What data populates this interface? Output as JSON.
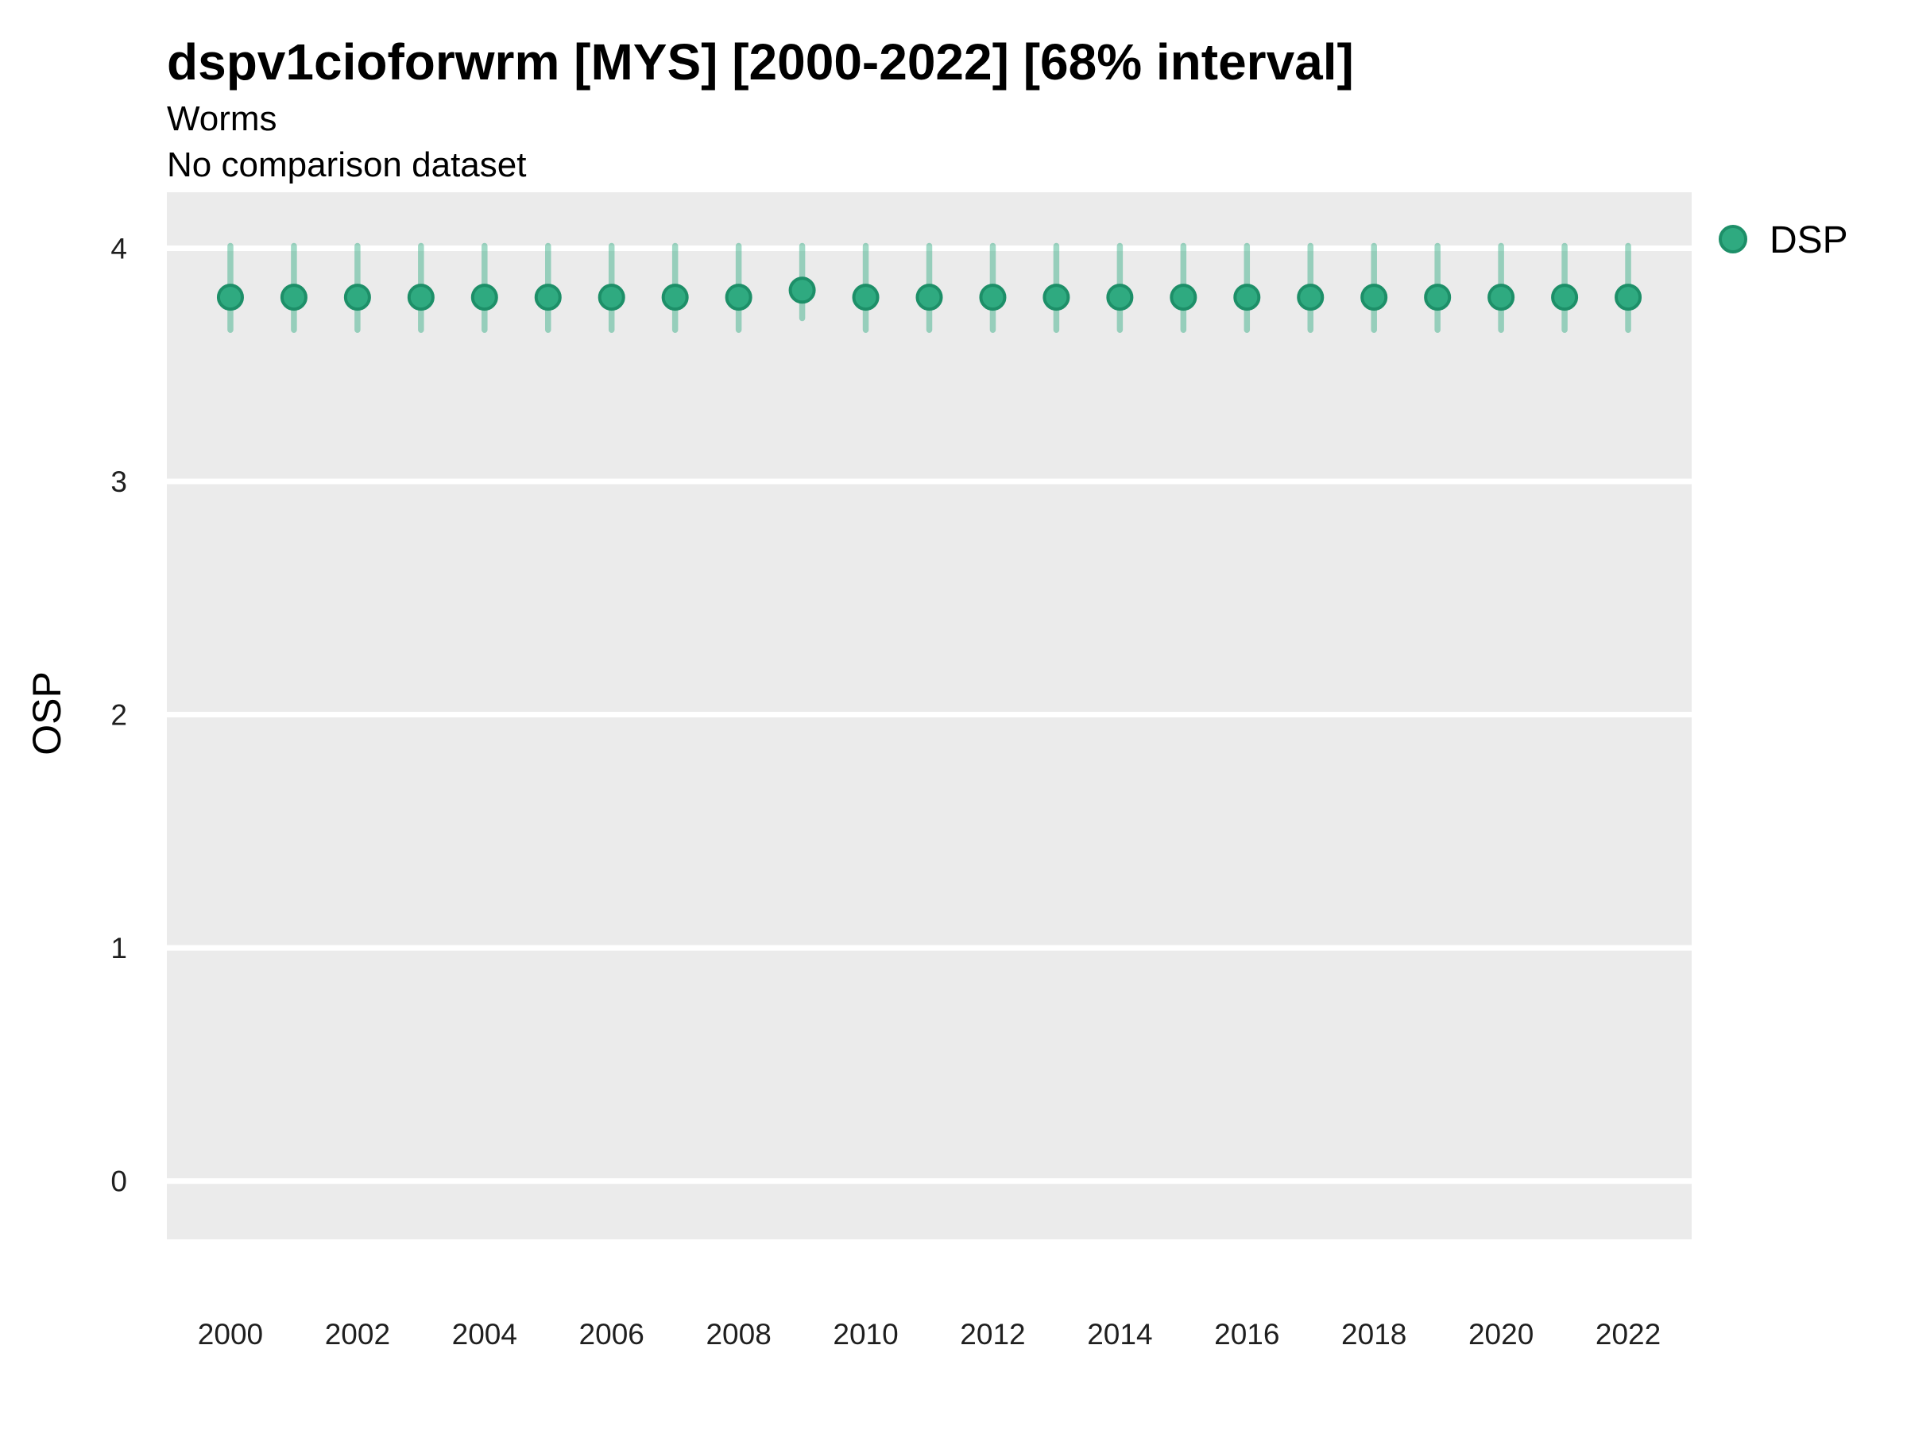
{
  "header": {
    "title": "dspv1cioforwrm [MYS] [2000-2022] [68% interval]",
    "subtitle": "Worms",
    "note": "No comparison dataset"
  },
  "legend": {
    "label": "DSP"
  },
  "axes": {
    "y_title": "OSP",
    "y_ticks": [
      "0",
      "1",
      "2",
      "3",
      "4"
    ],
    "x_ticks": [
      "2000",
      "2002",
      "2004",
      "2006",
      "2008",
      "2010",
      "2012",
      "2014",
      "2016",
      "2018",
      "2020",
      "2022"
    ]
  },
  "colors": {
    "point_fill": "#2faa80",
    "point_stroke": "#1d8f68",
    "errorbar": "#2faa80",
    "panel_bg": "#ebebeb",
    "gridline": "#ffffff",
    "text": "#000000",
    "tick_text": "#1f1f1f"
  },
  "chart_data": {
    "type": "scatter",
    "title": "dspv1cioforwrm [MYS] [2000-2022] [68% interval]",
    "subtitle": "Worms",
    "note": "No comparison dataset",
    "xlabel": "",
    "ylabel": "OSP",
    "interval_percent": 68,
    "legend_position": "right",
    "grid": "major horizontal white gridlines on gray panel",
    "x_domain": [
      1999,
      2023
    ],
    "ylim": [
      -0.25,
      4.24
    ],
    "y_ticks": [
      0,
      1,
      2,
      3,
      4
    ],
    "x_tick_years": [
      2000,
      2002,
      2004,
      2006,
      2008,
      2010,
      2012,
      2014,
      2016,
      2018,
      2020,
      2022
    ],
    "x": [
      2000,
      2001,
      2002,
      2003,
      2004,
      2005,
      2006,
      2007,
      2008,
      2009,
      2010,
      2011,
      2012,
      2013,
      2014,
      2015,
      2016,
      2017,
      2018,
      2019,
      2020,
      2021,
      2022
    ],
    "series": [
      {
        "name": "DSP",
        "mid": [
          3.79,
          3.79,
          3.79,
          3.79,
          3.79,
          3.79,
          3.79,
          3.79,
          3.79,
          3.82,
          3.79,
          3.79,
          3.79,
          3.79,
          3.79,
          3.79,
          3.79,
          3.79,
          3.79,
          3.79,
          3.79,
          3.79,
          3.79
        ],
        "lo": [
          3.65,
          3.65,
          3.65,
          3.65,
          3.65,
          3.65,
          3.65,
          3.65,
          3.65,
          3.7,
          3.65,
          3.65,
          3.65,
          3.65,
          3.65,
          3.65,
          3.65,
          3.65,
          3.65,
          3.65,
          3.65,
          3.65,
          3.65
        ],
        "hi": [
          4.01,
          4.01,
          4.01,
          4.01,
          4.01,
          4.01,
          4.01,
          4.01,
          4.01,
          4.01,
          4.01,
          4.01,
          4.01,
          4.01,
          4.01,
          4.01,
          4.01,
          4.01,
          4.01,
          4.01,
          4.01,
          4.01,
          4.01
        ]
      }
    ]
  }
}
